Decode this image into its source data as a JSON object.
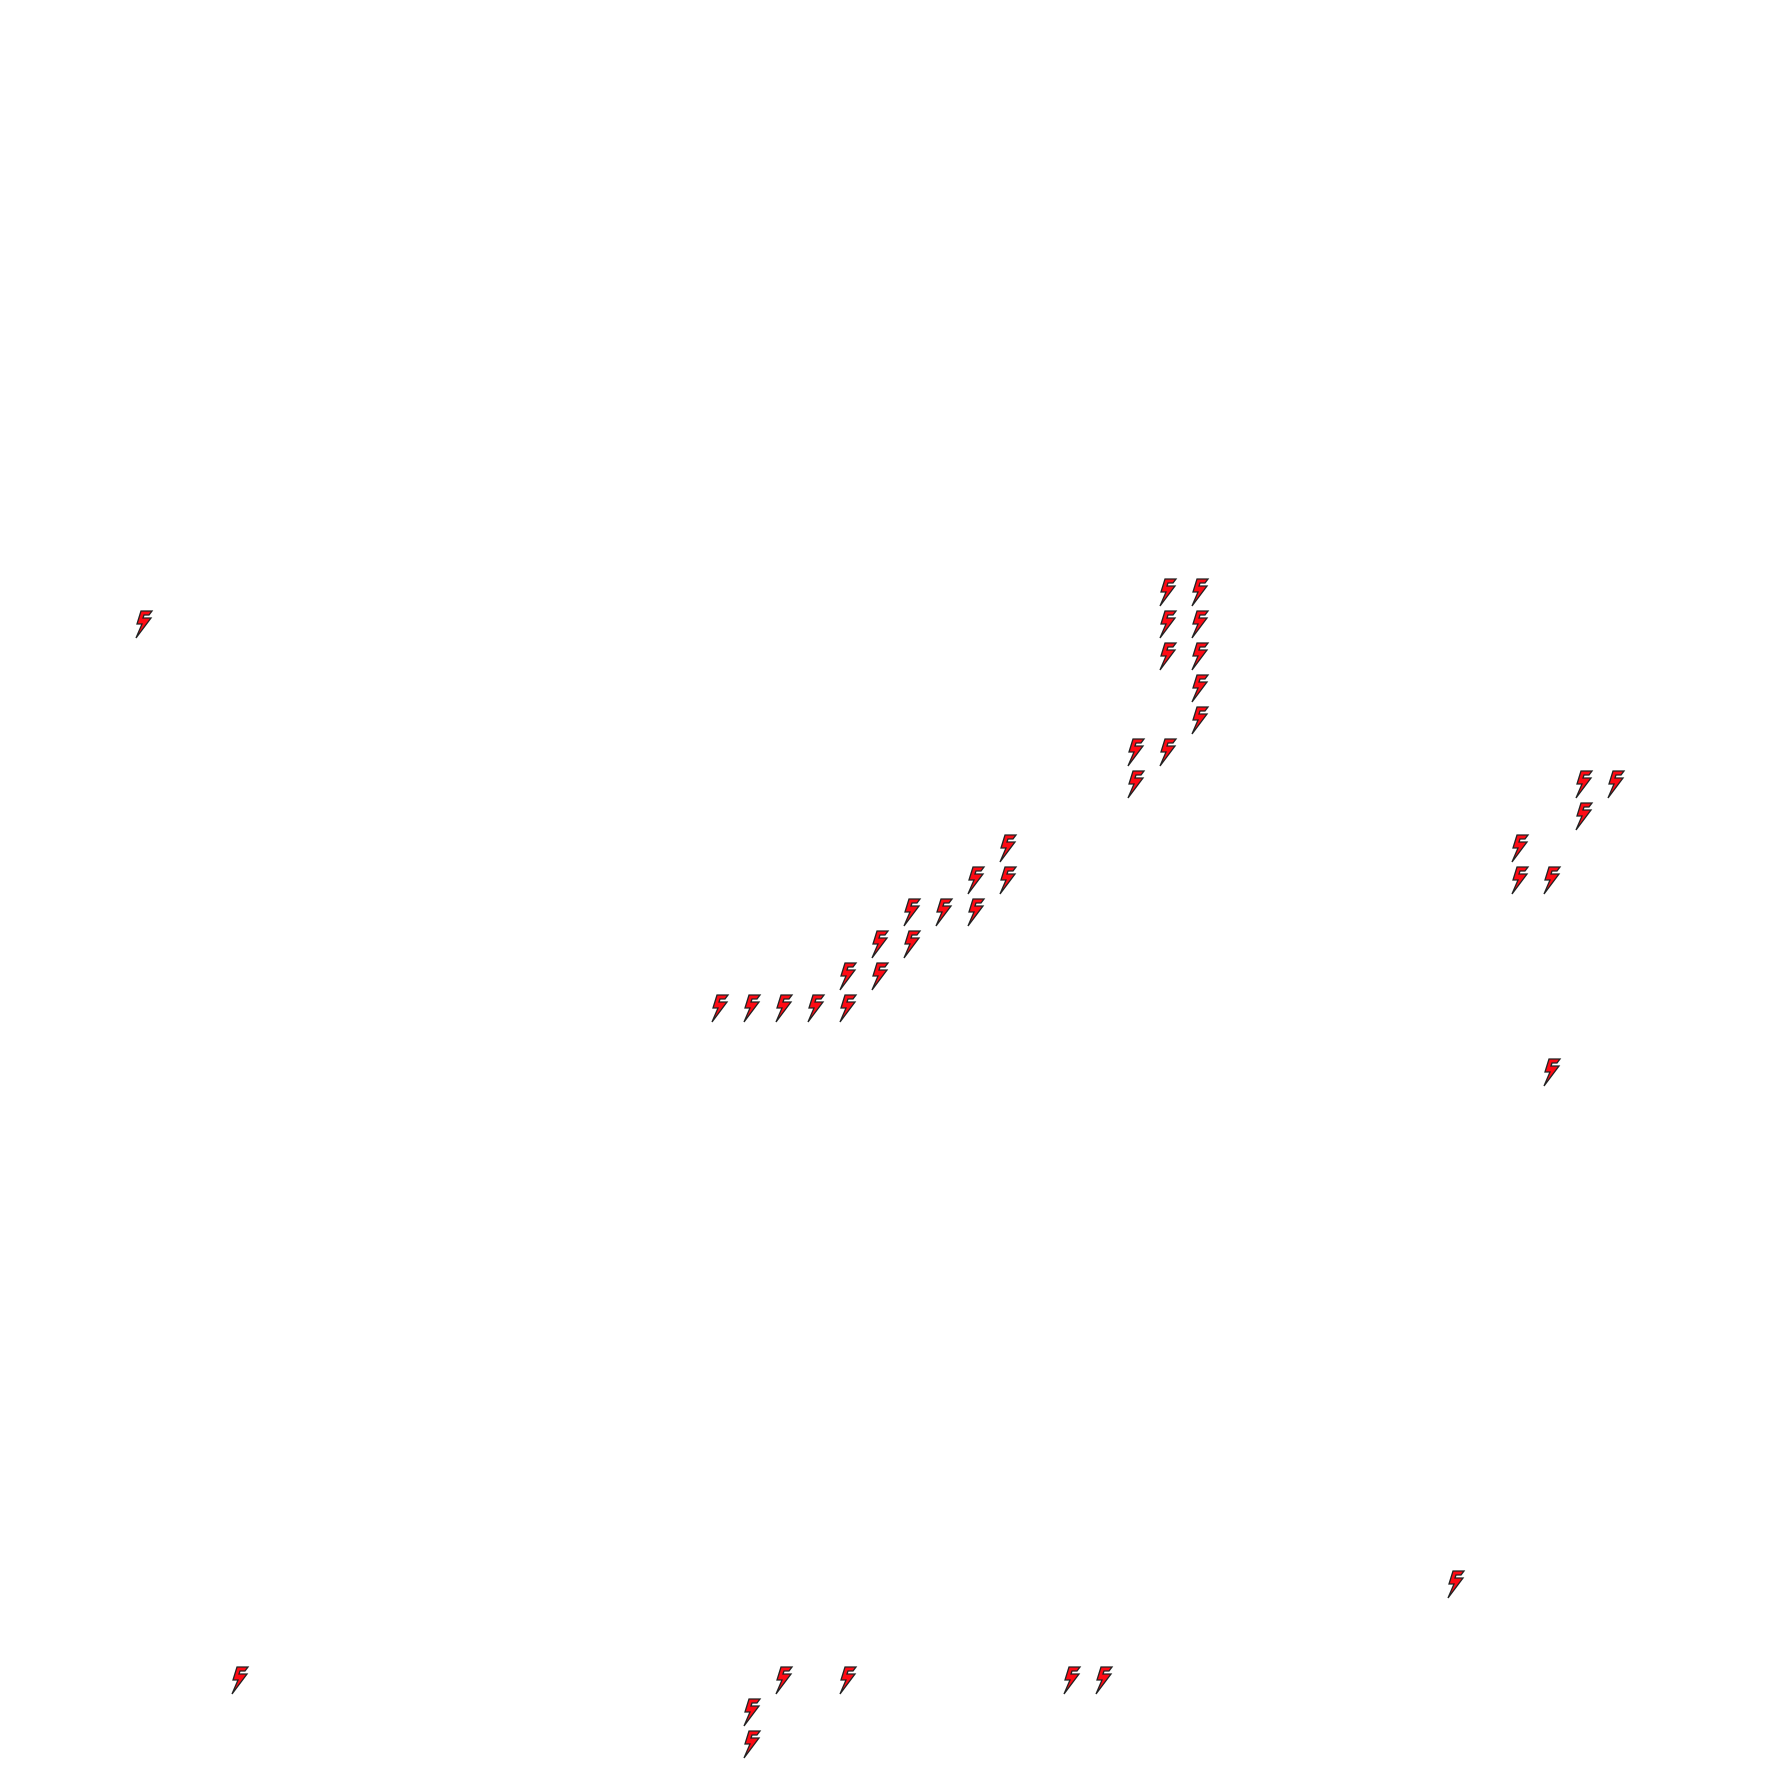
{
  "board": {
    "grid_size": 56,
    "icon": "lightning-bolt-icon",
    "fill_color": "#ff0a14",
    "stroke_color": "#222222",
    "background": "#ffffff",
    "cells": [
      {
        "col": 4,
        "row": 19
      },
      {
        "col": 36,
        "row": 18
      },
      {
        "col": 37,
        "row": 18
      },
      {
        "col": 36,
        "row": 19
      },
      {
        "col": 37,
        "row": 19
      },
      {
        "col": 36,
        "row": 20
      },
      {
        "col": 37,
        "row": 20
      },
      {
        "col": 37,
        "row": 21
      },
      {
        "col": 37,
        "row": 22
      },
      {
        "col": 35,
        "row": 23
      },
      {
        "col": 36,
        "row": 23
      },
      {
        "col": 35,
        "row": 24
      },
      {
        "col": 49,
        "row": 24
      },
      {
        "col": 50,
        "row": 24
      },
      {
        "col": 49,
        "row": 25
      },
      {
        "col": 47,
        "row": 26
      },
      {
        "col": 47,
        "row": 27
      },
      {
        "col": 48,
        "row": 27
      },
      {
        "col": 48,
        "row": 33
      },
      {
        "col": 31,
        "row": 26
      },
      {
        "col": 30,
        "row": 27
      },
      {
        "col": 31,
        "row": 27
      },
      {
        "col": 28,
        "row": 28
      },
      {
        "col": 29,
        "row": 28
      },
      {
        "col": 30,
        "row": 28
      },
      {
        "col": 27,
        "row": 29
      },
      {
        "col": 28,
        "row": 29
      },
      {
        "col": 26,
        "row": 30
      },
      {
        "col": 27,
        "row": 30
      },
      {
        "col": 22,
        "row": 31
      },
      {
        "col": 23,
        "row": 31
      },
      {
        "col": 24,
        "row": 31
      },
      {
        "col": 25,
        "row": 31
      },
      {
        "col": 26,
        "row": 31
      },
      {
        "col": 45,
        "row": 49
      },
      {
        "col": 7,
        "row": 52
      },
      {
        "col": 24,
        "row": 52
      },
      {
        "col": 26,
        "row": 52
      },
      {
        "col": 33,
        "row": 52
      },
      {
        "col": 34,
        "row": 52
      },
      {
        "col": 23,
        "row": 53
      },
      {
        "col": 23,
        "row": 54
      }
    ]
  }
}
